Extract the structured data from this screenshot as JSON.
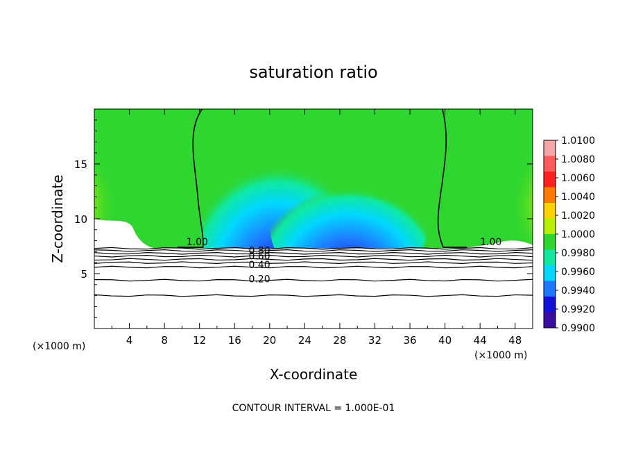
{
  "chart_data": {
    "type": "heatmap",
    "title": "saturation ratio",
    "xlabel": "X-coordinate",
    "ylabel": "Z-coordinate",
    "x_unit_left": "(×1000 m)",
    "x_unit_right": "(×1000 m)",
    "footer": "CONTOUR INTERVAL = 1.000E-01",
    "xlim": [
      0,
      50
    ],
    "ylim": [
      0,
      20
    ],
    "x_ticks": [
      "4",
      "8",
      "12",
      "16",
      "20",
      "24",
      "28",
      "32",
      "36",
      "40",
      "44",
      "48"
    ],
    "y_ticks": [
      "5",
      "10",
      "15"
    ],
    "colorbar_labels": [
      "1.0100",
      "1.0080",
      "1.0060",
      "1.0040",
      "1.0020",
      "1.0000",
      "0.9980",
      "0.9960",
      "0.9940",
      "0.9920",
      "0.9900"
    ],
    "colorbar_colors": [
      "#f4a6a6",
      "#ff5a5a",
      "#ff1f1f",
      "#ff7a00",
      "#ffd200",
      "#b8f000",
      "#2fd62f",
      "#10e8a0",
      "#00d8ff",
      "#1e78ff",
      "#1010d8",
      "#3a0ca0"
    ],
    "contour_labels": [
      {
        "text": "1.00",
        "x": 10.5,
        "z": 7.6
      },
      {
        "text": "0.80",
        "x": 17.6,
        "z": 6.8
      },
      {
        "text": "0.60",
        "x": 17.6,
        "z": 6.3
      },
      {
        "text": "0.40",
        "x": 17.6,
        "z": 5.5
      },
      {
        "text": "0.20",
        "x": 17.6,
        "z": 4.2
      },
      {
        "text": "1.00",
        "x": 44.0,
        "z": 7.6
      }
    ],
    "lower_contours_z": [
      7.3,
      7.1,
      6.85,
      6.6,
      6.3,
      6.0,
      5.6,
      4.4,
      3.0
    ],
    "saturation_line_left_x": 12.0,
    "saturation_line_right_x": 39.5,
    "ground_top_z": 7.3
  }
}
